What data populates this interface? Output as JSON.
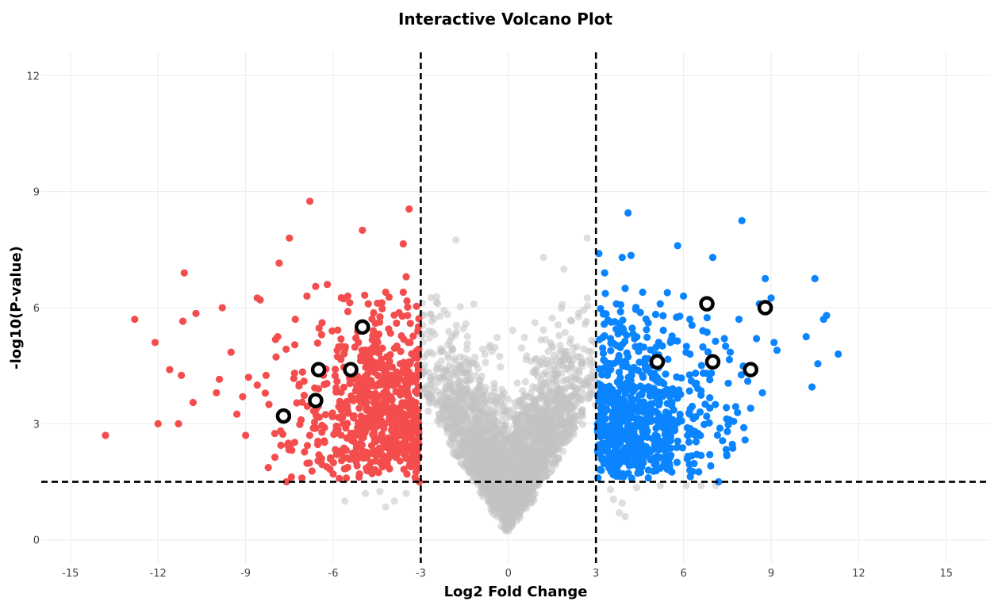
{
  "chart_data": {
    "type": "scatter",
    "title": "Interactive Volcano Plot",
    "xlabel": "Log2 Fold Change",
    "ylabel": "-log10(P-value)",
    "xlim": [
      -16,
      16.5
    ],
    "ylim": [
      -0.6,
      12.6
    ],
    "x_ticks": [
      -15,
      -12,
      -9,
      -6,
      -3,
      0,
      3,
      6,
      9,
      12,
      15
    ],
    "y_ticks": [
      0,
      3,
      6,
      9,
      12
    ],
    "grid": true,
    "legend": "none",
    "thresholds": {
      "fold_change": [
        -3,
        3
      ],
      "neg_log10_p": 1.5
    },
    "colors": {
      "down": "#f44d4d",
      "up": "#0a84ff",
      "not_significant": "#c2c2c2",
      "highlight_stroke": "#000000",
      "highlight_fill": "#ffffff",
      "threshold_line": "#000000"
    },
    "series": [
      {
        "group": "down",
        "points": [
          [
            -13.8,
            2.7
          ],
          [
            -12.8,
            5.7
          ],
          [
            -12.1,
            5.1
          ],
          [
            -12.0,
            3.0
          ],
          [
            -11.6,
            4.4
          ],
          [
            -11.3,
            3.0
          ],
          [
            -11.2,
            4.25
          ],
          [
            -11.15,
            5.65
          ],
          [
            -11.1,
            6.9
          ],
          [
            -10.8,
            3.55
          ],
          [
            -10.7,
            5.85
          ],
          [
            -10.0,
            3.8
          ],
          [
            -9.9,
            4.15
          ],
          [
            -9.8,
            6.0
          ],
          [
            -9.5,
            4.85
          ],
          [
            -9.3,
            3.25
          ],
          [
            -9.1,
            3.7
          ],
          [
            -9.0,
            2.7
          ],
          [
            -8.9,
            4.2
          ],
          [
            -8.6,
            4.0
          ],
          [
            -8.6,
            6.25
          ],
          [
            -8.5,
            6.2
          ],
          [
            -8.3,
            4.25
          ],
          [
            -8.2,
            3.5
          ],
          [
            -8.0,
            2.75
          ],
          [
            -7.9,
            5.25
          ],
          [
            -7.85,
            7.15
          ],
          [
            -7.6,
            1.5
          ],
          [
            -7.5,
            7.8
          ],
          [
            -7.3,
            5.7
          ],
          [
            -7.1,
            3.1
          ],
          [
            -6.9,
            6.3
          ],
          [
            -6.8,
            8.75
          ],
          [
            -6.6,
            6.55
          ],
          [
            -6.4,
            2.1
          ],
          [
            -6.2,
            6.6
          ],
          [
            -6.0,
            1.7
          ],
          [
            -5.7,
            5.0
          ],
          [
            -5.5,
            6.3
          ],
          [
            -5.2,
            2.4
          ],
          [
            -5.0,
            8.0
          ],
          [
            -4.8,
            6.1
          ],
          [
            -4.6,
            4.55
          ],
          [
            -4.5,
            3.5
          ],
          [
            -4.4,
            2.0
          ],
          [
            -4.2,
            6.4
          ],
          [
            -4.1,
            5.45
          ],
          [
            -3.9,
            4.95
          ],
          [
            -3.8,
            2.7
          ],
          [
            -3.6,
            7.65
          ],
          [
            -3.5,
            6.8
          ],
          [
            -3.45,
            5.8
          ],
          [
            -3.4,
            8.55
          ],
          [
            -3.3,
            4.2
          ],
          [
            -3.2,
            3.1
          ],
          [
            -3.1,
            5.4
          ],
          [
            -3.05,
            1.5
          ],
          [
            -3.6,
            6.4
          ],
          [
            -7.0,
            4.1
          ],
          [
            -6.3,
            2.9
          ]
        ],
        "cluster_count": 700
      },
      {
        "group": "up",
        "points": [
          [
            3.1,
            7.4
          ],
          [
            3.3,
            6.9
          ],
          [
            3.5,
            5.2
          ],
          [
            3.7,
            6.1
          ],
          [
            3.9,
            7.3
          ],
          [
            4.0,
            6.5
          ],
          [
            4.1,
            8.45
          ],
          [
            4.2,
            7.35
          ],
          [
            4.4,
            2.5
          ],
          [
            4.6,
            6.4
          ],
          [
            4.8,
            1.8
          ],
          [
            5.0,
            4.3
          ],
          [
            5.2,
            6.1
          ],
          [
            5.4,
            3.3
          ],
          [
            5.6,
            1.75
          ],
          [
            5.8,
            7.6
          ],
          [
            6.0,
            6.3
          ],
          [
            6.1,
            5.0
          ],
          [
            6.2,
            1.95
          ],
          [
            6.5,
            2.75
          ],
          [
            6.6,
            3.85
          ],
          [
            6.9,
            2.2
          ],
          [
            7.0,
            7.3
          ],
          [
            7.2,
            1.5
          ],
          [
            7.4,
            5.2
          ],
          [
            7.6,
            4.85
          ],
          [
            7.9,
            5.7
          ],
          [
            8.0,
            8.25
          ],
          [
            8.2,
            4.1
          ],
          [
            8.3,
            3.4
          ],
          [
            8.5,
            5.2
          ],
          [
            8.6,
            6.1
          ],
          [
            8.7,
            3.8
          ],
          [
            8.8,
            6.75
          ],
          [
            9.0,
            6.25
          ],
          [
            9.1,
            5.1
          ],
          [
            9.2,
            4.9
          ],
          [
            10.2,
            5.25
          ],
          [
            10.5,
            6.75
          ],
          [
            10.6,
            4.55
          ],
          [
            10.8,
            5.7
          ],
          [
            10.9,
            5.8
          ],
          [
            11.3,
            4.8
          ],
          [
            10.4,
            3.95
          ],
          [
            6.8,
            4.3
          ],
          [
            7.5,
            2.8
          ]
        ],
        "cluster_count": 700
      },
      {
        "group": "not_significant",
        "extra_points": [
          [
            -5.6,
            1.0
          ],
          [
            -4.9,
            1.2
          ],
          [
            -4.4,
            1.25
          ],
          [
            -4.2,
            0.85
          ],
          [
            -3.9,
            1.0
          ],
          [
            -3.5,
            1.2
          ],
          [
            3.5,
            1.3
          ],
          [
            3.6,
            1.05
          ],
          [
            3.8,
            0.7
          ],
          [
            3.9,
            0.95
          ],
          [
            4.0,
            0.6
          ],
          [
            4.4,
            1.35
          ],
          [
            5.2,
            1.4
          ],
          [
            6.1,
            1.4
          ],
          [
            6.6,
            1.4
          ],
          [
            7.1,
            1.4
          ],
          [
            -1.8,
            7.75
          ],
          [
            1.2,
            7.3
          ],
          [
            2.7,
            7.8
          ],
          [
            1.9,
            7.0
          ]
        ],
        "cluster_count": 2600
      }
    ],
    "highlighted": [
      [
        -7.7,
        3.2
      ],
      [
        -6.6,
        3.6
      ],
      [
        -6.5,
        4.4
      ],
      [
        -5.4,
        4.4
      ],
      [
        -5.0,
        5.5
      ],
      [
        5.1,
        4.6
      ],
      [
        6.8,
        6.1
      ],
      [
        7.0,
        4.6
      ],
      [
        8.3,
        4.4
      ],
      [
        8.8,
        6.0
      ]
    ]
  }
}
